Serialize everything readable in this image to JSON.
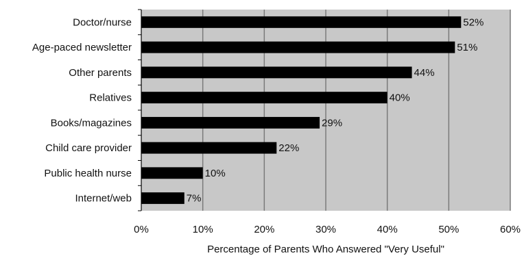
{
  "chart_data": {
    "type": "bar",
    "orientation": "horizontal",
    "categories": [
      "Doctor/nurse",
      "Age-paced newsletter",
      "Other parents",
      "Relatives",
      "Books/magazines",
      "Child care provider",
      "Public health nurse",
      "Internet/web"
    ],
    "values": [
      52,
      51,
      44,
      40,
      29,
      22,
      10,
      7
    ],
    "data_labels": [
      "52%",
      "51%",
      "44%",
      "40%",
      "29%",
      "22%",
      "10%",
      "7%"
    ],
    "title": "",
    "xlabel": "Percentage of Parents Who Answered \"Very Useful\"",
    "ylabel": "",
    "xlim": [
      0,
      60
    ],
    "x_ticks": [
      0,
      10,
      20,
      30,
      40,
      50,
      60
    ],
    "x_tick_labels": [
      "0%",
      "10%",
      "20%",
      "30%",
      "40%",
      "50%",
      "60%"
    ],
    "grid": "vertical",
    "legend": "none",
    "colors": {
      "plot_background": "#c8c8c8",
      "bar": "#000000",
      "gridline": "#7a7a7a"
    }
  }
}
